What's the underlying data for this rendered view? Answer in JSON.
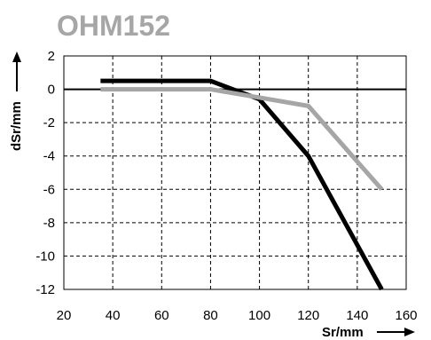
{
  "chart_data": {
    "type": "line",
    "title": "OHM152",
    "xlabel": "Sr/mm",
    "ylabel": "dSr/mm",
    "xlim": [
      20,
      160
    ],
    "ylim": [
      -12,
      2
    ],
    "xticks": [
      20,
      40,
      60,
      80,
      100,
      120,
      140,
      160
    ],
    "yticks": [
      2,
      0,
      -2,
      -4,
      -6,
      -8,
      -10,
      -12
    ],
    "grid": true,
    "series": [
      {
        "color": "#000000",
        "points": [
          [
            35,
            0.5
          ],
          [
            80,
            0.5
          ],
          [
            100,
            -0.6
          ],
          [
            120,
            -4
          ],
          [
            150,
            -12
          ]
        ]
      },
      {
        "color": "#a6a6a6",
        "points": [
          [
            35,
            0
          ],
          [
            80,
            0
          ],
          [
            100,
            -0.5
          ],
          [
            120,
            -1
          ],
          [
            150,
            -6
          ]
        ]
      }
    ]
  }
}
